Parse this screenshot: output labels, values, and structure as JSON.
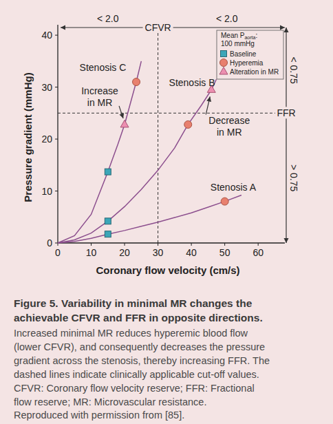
{
  "chart_data": {
    "type": "line",
    "x_label": "Coronary flow velocity (cm/s)",
    "y_label": "Pressure gradient (mmHg)",
    "xlim": [
      0,
      68
    ],
    "xticks": [
      0,
      10,
      20,
      30,
      40,
      50,
      60
    ],
    "ylim": [
      0,
      42
    ],
    "yticks": [
      0,
      10,
      20,
      30,
      40
    ],
    "grid": false,
    "legend": "top-right",
    "legend_title": {
      "text": "Mean P",
      "subscript": "aorta",
      "suffix": ":"
    },
    "legend_subtitle": "100 mmHg",
    "series": [
      {
        "name": "Stenosis A",
        "type": "line",
        "line_style": "solid",
        "color": "#8c4f8e",
        "x": [
          0,
          5,
          10,
          15,
          20,
          25,
          30,
          35,
          40,
          45,
          50,
          55
        ],
        "values": [
          0,
          0.3,
          0.9,
          1.7,
          2.4,
          3.2,
          4.0,
          4.9,
          5.8,
          6.9,
          8.0,
          9.2
        ]
      },
      {
        "name": "Stenosis B",
        "type": "line",
        "line_style": "solid",
        "color": "#8c4f8e",
        "x": [
          0,
          5,
          10,
          15,
          20,
          25,
          30,
          35,
          39,
          43,
          46,
          47.5
        ],
        "values": [
          0,
          0.6,
          1.9,
          4.2,
          7.0,
          10.3,
          14.0,
          18.3,
          22.8,
          26.5,
          29.5,
          31.5
        ]
      },
      {
        "name": "Stenosis C",
        "type": "line",
        "line_style": "solid",
        "color": "#8c4f8e",
        "x": [
          0,
          5,
          10,
          15,
          18,
          20,
          22,
          23.5,
          25
        ],
        "values": [
          0,
          1.4,
          5.5,
          13.7,
          19,
          22.8,
          27.5,
          31,
          35
        ]
      },
      {
        "name": "Baseline",
        "type": "scatter",
        "marker": "square",
        "color": "#3ba6b8",
        "x": [
          15,
          15,
          15
        ],
        "values": [
          13.7,
          4.2,
          1.7
        ]
      },
      {
        "name": "Hyperemia",
        "type": "scatter",
        "marker": "circle",
        "color": "#e8806e",
        "x": [
          23.5,
          39,
          50
        ],
        "values": [
          31,
          22.8,
          8
        ]
      },
      {
        "name": "Alteration in MR",
        "type": "scatter",
        "marker": "triangle",
        "color": "#ec8fb0",
        "x": [
          20,
          46
        ],
        "values": [
          22.8,
          29.5
        ]
      }
    ],
    "reference_lines": [
      {
        "axis": "x",
        "value": 30,
        "label": "CFVR",
        "left_label": "< 2.0",
        "right_label": "< 2.0"
      },
      {
        "axis": "y",
        "value": 25,
        "label": "FFR",
        "above_label": "< 0.75",
        "below_label": "> 0.75"
      }
    ],
    "annotations": [
      {
        "text": [
          "Increase",
          "in MR"
        ]
      },
      {
        "text": [
          "Decrease",
          "in MR"
        ]
      }
    ],
    "caption": {
      "title": [
        "Figure 5. Variability in minimal MR changes the",
        "achievable CFVR and FFR in opposite directions."
      ],
      "text": [
        "Increased minimal MR reduces hyperemic blood flow",
        "(lower CFVR), and consequently decreases the pressure",
        "gradient across the stenosis, thereby increasing FFR. The",
        "dashed lines indicate clinically applicable cut-off values.",
        "CFVR: Coronary flow velocity reserve; FFR: Fractional",
        "flow reserve; MR: Microvascular resistance.",
        "Reproduced with permission from [85]."
      ]
    }
  }
}
